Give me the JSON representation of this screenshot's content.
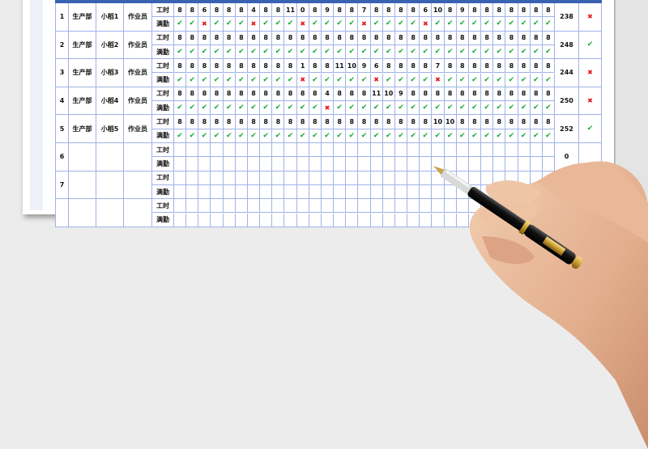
{
  "labels": {
    "hours": "工时",
    "attendance": "满勤"
  },
  "colors": {
    "header": "#3a62b3",
    "grid": "#9fb3e6",
    "check": "#17a83a",
    "cross": "#e3161b"
  },
  "icons": {
    "check": "check-icon",
    "cross": "cross-icon"
  },
  "employees": [
    {
      "no": "1",
      "dept": "生产部",
      "name": "小稻1",
      "role": "作业员",
      "hours": [
        8,
        8,
        6,
        8,
        8,
        8,
        4,
        8,
        8,
        11,
        0,
        8,
        9,
        8,
        8,
        7,
        8,
        8,
        8,
        8,
        6,
        10,
        8,
        9,
        8,
        8,
        8,
        8,
        8,
        8,
        8
      ],
      "attendance": [
        "y",
        "y",
        "n",
        "y",
        "y",
        "y",
        "n",
        "y",
        "y",
        "y",
        "n",
        "y",
        "y",
        "y",
        "y",
        "n",
        "y",
        "y",
        "y",
        "y",
        "n",
        "y",
        "y",
        "y",
        "y",
        "y",
        "y",
        "y",
        "y",
        "y",
        "y"
      ],
      "total": "238",
      "status": "n"
    },
    {
      "no": "2",
      "dept": "生产部",
      "name": "小稻2",
      "role": "作业员",
      "hours": [
        8,
        8,
        8,
        8,
        8,
        8,
        8,
        8,
        8,
        8,
        8,
        8,
        8,
        8,
        8,
        8,
        8,
        8,
        8,
        8,
        8,
        8,
        8,
        8,
        8,
        8,
        8,
        8,
        8,
        8,
        8
      ],
      "attendance": [
        "y",
        "y",
        "y",
        "y",
        "y",
        "y",
        "y",
        "y",
        "y",
        "y",
        "y",
        "y",
        "y",
        "y",
        "y",
        "y",
        "y",
        "y",
        "y",
        "y",
        "y",
        "y",
        "y",
        "y",
        "y",
        "y",
        "y",
        "y",
        "y",
        "y",
        "y"
      ],
      "total": "248",
      "status": "y"
    },
    {
      "no": "3",
      "dept": "生产部",
      "name": "小稻3",
      "role": "作业员",
      "hours": [
        8,
        8,
        8,
        8,
        8,
        8,
        8,
        8,
        8,
        8,
        1,
        8,
        8,
        11,
        10,
        9,
        6,
        8,
        8,
        8,
        8,
        7,
        8,
        8,
        8,
        8,
        8,
        8,
        8,
        8,
        8
      ],
      "attendance": [
        "y",
        "y",
        "y",
        "y",
        "y",
        "y",
        "y",
        "y",
        "y",
        "y",
        "n",
        "y",
        "y",
        "y",
        "y",
        "y",
        "n",
        "y",
        "y",
        "y",
        "y",
        "n",
        "y",
        "y",
        "y",
        "y",
        "y",
        "y",
        "y",
        "y",
        "y"
      ],
      "total": "244",
      "status": "n"
    },
    {
      "no": "4",
      "dept": "生产部",
      "name": "小稻4",
      "role": "作业员",
      "hours": [
        8,
        8,
        8,
        8,
        8,
        8,
        8,
        8,
        8,
        8,
        8,
        8,
        4,
        8,
        8,
        8,
        11,
        10,
        9,
        8,
        8,
        8,
        8,
        8,
        8,
        8,
        8,
        8,
        8,
        8,
        8
      ],
      "attendance": [
        "y",
        "y",
        "y",
        "y",
        "y",
        "y",
        "y",
        "y",
        "y",
        "y",
        "y",
        "y",
        "n",
        "y",
        "y",
        "y",
        "y",
        "y",
        "y",
        "y",
        "y",
        "y",
        "y",
        "y",
        "y",
        "y",
        "y",
        "y",
        "y",
        "y",
        "y"
      ],
      "total": "250",
      "status": "n"
    },
    {
      "no": "5",
      "dept": "生产部",
      "name": "小稻5",
      "role": "作业员",
      "hours": [
        8,
        8,
        8,
        8,
        8,
        8,
        8,
        8,
        8,
        8,
        8,
        8,
        8,
        8,
        8,
        8,
        8,
        8,
        8,
        8,
        8,
        10,
        10,
        8,
        8,
        8,
        8,
        8,
        8,
        8,
        8
      ],
      "attendance": [
        "y",
        "y",
        "y",
        "y",
        "y",
        "y",
        "y",
        "y",
        "y",
        "y",
        "y",
        "y",
        "y",
        "y",
        "y",
        "y",
        "y",
        "y",
        "y",
        "y",
        "y",
        "y",
        "y",
        "y",
        "y",
        "y",
        "y",
        "y",
        "y",
        "y",
        "y"
      ],
      "total": "252",
      "status": "y"
    },
    {
      "no": "6",
      "dept": "",
      "name": "",
      "role": "",
      "hours": [],
      "attendance": [],
      "total": "0",
      "status": ""
    },
    {
      "no": "7",
      "dept": "",
      "name": "",
      "role": "",
      "hours": [],
      "attendance": [],
      "total": "",
      "status": ""
    },
    {
      "no": "",
      "dept": "",
      "name": "",
      "role": "",
      "hours": [],
      "attendance": [],
      "total": "",
      "status": ""
    }
  ]
}
